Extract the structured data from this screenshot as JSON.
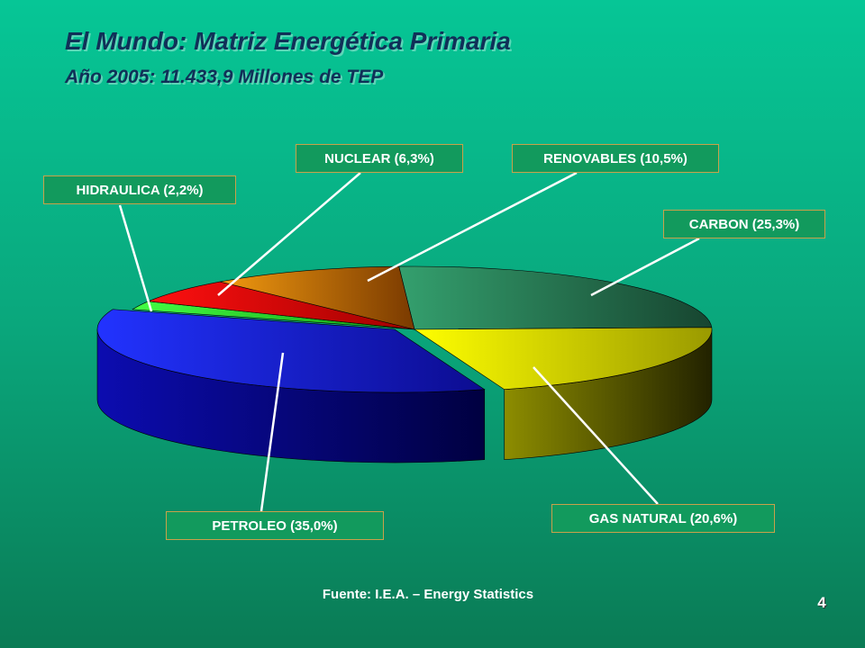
{
  "slide": {
    "title": "El Mundo: Matriz Energética Primaria",
    "subtitle": "Año 2005: 11.433,9 Millones de TEP",
    "source": "Fuente: I.E.A. – Energy Statistics",
    "page_number": "4"
  },
  "chart_data": {
    "type": "pie",
    "title": "",
    "slices": [
      {
        "name": "CARBON",
        "value": 25.3,
        "label": "CARBON (25,3%)",
        "color": "#2e8f66"
      },
      {
        "name": "GAS NATURAL",
        "value": 20.6,
        "label": "GAS NATURAL (20,6%)",
        "color": "#d9d900"
      },
      {
        "name": "PETROLEO",
        "value": 35.0,
        "label": "PETROLEO (35,0%)",
        "color": "#1a1ad0"
      },
      {
        "name": "HIDRAULICA",
        "value": 2.2,
        "label": "HIDRAULICA (2,2%)",
        "color": "#22dd22"
      },
      {
        "name": "NUCLEAR",
        "value": 6.3,
        "label": "NUCLEAR (6,3%)",
        "color": "#e00000"
      },
      {
        "name": "RENOVABLES",
        "value": 10.5,
        "label": "RENOVABLES (10,5%)",
        "color": "#e38a00"
      }
    ],
    "legend": "callout-labels"
  }
}
